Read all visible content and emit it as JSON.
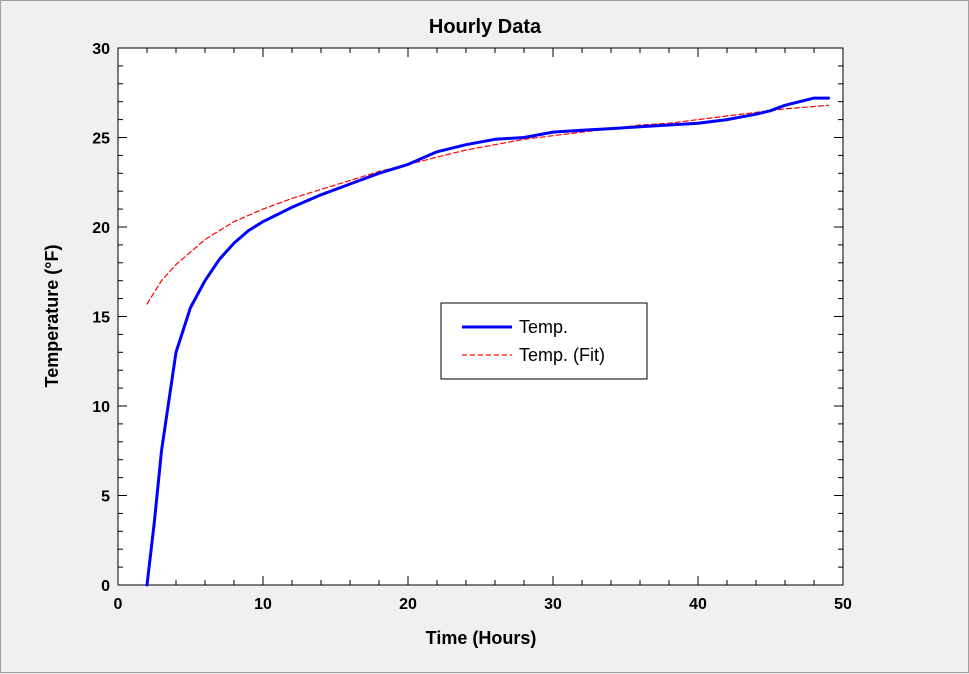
{
  "chart_data": {
    "type": "line",
    "title": "Hourly Data",
    "xlabel": "Time (Hours)",
    "ylabel": "Temperature (°F)",
    "xlim": [
      0,
      50
    ],
    "ylim": [
      0,
      30
    ],
    "x_ticks": [
      0,
      10,
      20,
      30,
      40,
      50
    ],
    "y_ticks": [
      0,
      5,
      10,
      15,
      20,
      25,
      30
    ],
    "grid": false,
    "legend_position": "center-right",
    "series": [
      {
        "name": "Temp.",
        "color": "#0000ff",
        "style": "solid",
        "x": [
          2,
          2.5,
          3,
          4,
          5,
          6,
          7,
          8,
          9,
          10,
          12,
          14,
          16,
          18,
          20,
          22,
          24,
          26,
          28,
          30,
          32,
          34,
          36,
          38,
          40,
          42,
          44,
          45,
          46,
          47,
          48,
          49
        ],
        "y": [
          0,
          3.5,
          7.5,
          13,
          15.5,
          17,
          18.2,
          19.1,
          19.8,
          20.3,
          21.1,
          21.8,
          22.4,
          23.0,
          23.5,
          24.2,
          24.6,
          24.9,
          25.0,
          25.3,
          25.4,
          25.5,
          25.6,
          25.7,
          25.8,
          26.0,
          26.3,
          26.5,
          26.8,
          27.0,
          27.2,
          27.2
        ]
      },
      {
        "name": "Temp. (Fit)",
        "color": "#ff0000",
        "style": "dashed",
        "x": [
          2,
          3,
          4,
          5,
          6,
          7,
          8,
          10,
          12,
          14,
          16,
          18,
          20,
          22,
          24,
          26,
          28,
          30,
          32,
          34,
          36,
          38,
          40,
          42,
          44,
          46,
          49
        ],
        "y": [
          15.7,
          17.0,
          17.9,
          18.6,
          19.3,
          19.8,
          20.3,
          21.0,
          21.6,
          22.1,
          22.6,
          23.1,
          23.5,
          23.9,
          24.3,
          24.6,
          24.9,
          25.1,
          25.3,
          25.5,
          25.7,
          25.8,
          26.0,
          26.2,
          26.4,
          26.6,
          26.8
        ]
      }
    ]
  }
}
